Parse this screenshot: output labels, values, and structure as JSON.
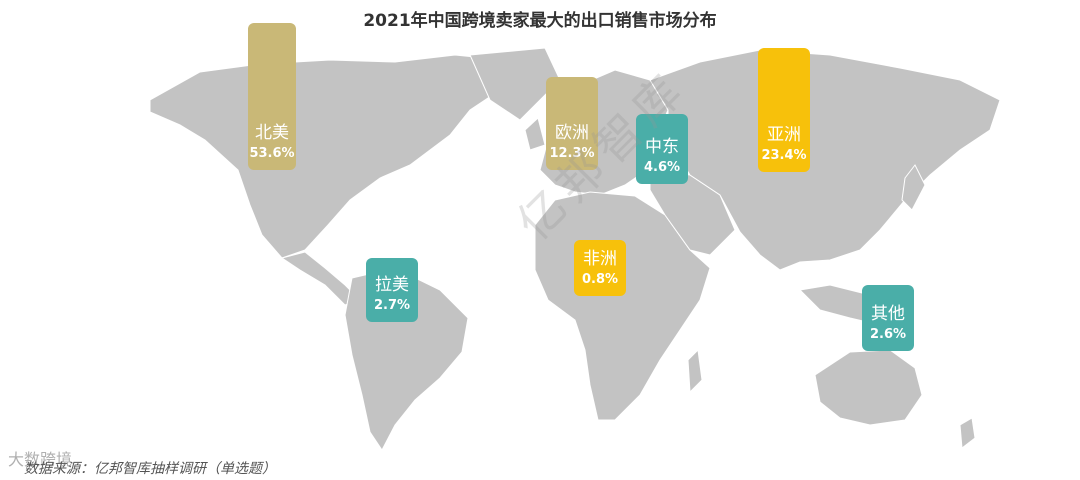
{
  "watermark": "亿邦智库",
  "footer": {
    "logo": "大数跨境",
    "source": "数据来源：亿邦智库抽样调研（单选题）"
  },
  "chart_data": {
    "type": "map",
    "title": "2021年中国跨境卖家最大的出口销售市场分布",
    "unit": "%",
    "colors": {
      "land": "#c3c3c3",
      "high": "#c9b877",
      "top": "#f7c10b",
      "low": "#4aaea8"
    },
    "regions": [
      {
        "name": "北美",
        "value": 53.6,
        "label": "53.6%",
        "color": "#c9b877"
      },
      {
        "name": "欧洲",
        "value": 12.3,
        "label": "12.3%",
        "color": "#c9b877"
      },
      {
        "name": "中东",
        "value": 4.6,
        "label": "4.6%",
        "color": "#4aaea8"
      },
      {
        "name": "亚洲",
        "value": 23.4,
        "label": "23.4%",
        "color": "#f7c10b"
      },
      {
        "name": "非洲",
        "value": 0.8,
        "label": "0.8%",
        "color": "#f7c10b"
      },
      {
        "name": "拉美",
        "value": 2.7,
        "label": "2.7%",
        "color": "#4aaea8"
      },
      {
        "name": "其他",
        "value": 2.6,
        "label": "2.6%",
        "color": "#4aaea8"
      }
    ]
  }
}
